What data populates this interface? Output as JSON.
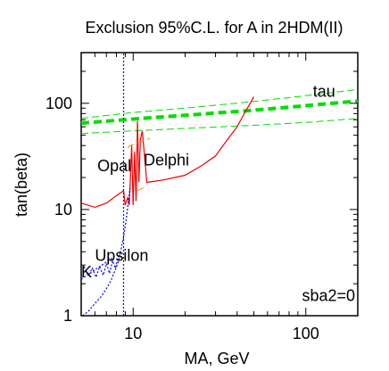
{
  "chart_data": {
    "type": "line",
    "title": "Exclusion 95%C.L. for A in 2HDM(II)",
    "xlabel": "MA,  GeV",
    "ylabel": "tan(beta)",
    "xscale": "log",
    "yscale": "log",
    "xlim": [
      5,
      200
    ],
    "ylim": [
      1,
      300
    ],
    "x_ticks": [
      {
        "value": 10,
        "label": "10"
      },
      {
        "value": 100,
        "label": "100"
      }
    ],
    "y_ticks": [
      {
        "value": 1,
        "label": "1"
      },
      {
        "value": 10,
        "label": "10"
      },
      {
        "value": 100,
        "label": "100"
      }
    ],
    "grid": false,
    "legend": "none",
    "annotations": [
      {
        "text": "tau",
        "x": 110,
        "y": 115
      },
      {
        "text": "Opal",
        "x": 6.2,
        "y": 23
      },
      {
        "text": "Delphi",
        "x": 11.5,
        "y": 26
      },
      {
        "text": "Upsilon",
        "x": 6.0,
        "y": 3.3
      },
      {
        "text": "K",
        "x": 5.0,
        "y": 2.3
      },
      {
        "text": "sba2=0",
        "x": 95,
        "y": 1.38
      }
    ],
    "series": [
      {
        "id": "tau-central",
        "color": "#00dd00",
        "style": "thick-dashed",
        "x": [
          5,
          10,
          20,
          50,
          100,
          200
        ],
        "y": [
          65,
          71,
          77,
          86,
          95,
          105
        ]
      },
      {
        "id": "tau-upper",
        "color": "#00dd00",
        "style": "thin-dashed",
        "x": [
          5,
          10,
          20,
          50,
          100,
          200
        ],
        "y": [
          72,
          82,
          90,
          104,
          118,
          135
        ]
      },
      {
        "id": "tau-lower",
        "color": "#00dd00",
        "style": "thin-dashed",
        "x": [
          5,
          10,
          20,
          50,
          100,
          200
        ],
        "y": [
          52,
          55,
          58,
          62,
          66,
          72
        ]
      },
      {
        "id": "delphi",
        "color": "#ee0000",
        "style": "solid",
        "x": [
          5,
          6,
          7,
          8,
          8.8,
          9,
          9.3,
          9.5,
          9.8,
          10,
          10.2,
          10.4,
          10.6,
          10.8,
          11,
          11.3,
          12,
          15,
          20,
          25,
          30,
          35,
          40,
          45,
          50
        ],
        "y": [
          11.5,
          10.5,
          11.5,
          13.5,
          15,
          11,
          13,
          11,
          40,
          11,
          35,
          12,
          68,
          18,
          45,
          55,
          18,
          19,
          21,
          26,
          32,
          45,
          60,
          85,
          115
        ]
      },
      {
        "id": "opal",
        "color": "#ff8800",
        "style": "thin-dashed",
        "x": [
          9.3,
          9.6,
          10,
          10.3,
          10.7,
          11.2,
          11.8,
          12.5
        ],
        "y": [
          38,
          40,
          41,
          42,
          43,
          44,
          45,
          47
        ]
      },
      {
        "id": "opal-lower",
        "color": "#ff8800",
        "style": "thin-dashed",
        "x": [
          10.5,
          11,
          11.5,
          12
        ],
        "y": [
          15,
          15.5,
          16,
          16.5
        ]
      },
      {
        "id": "vertical-limit",
        "color": "#0000ee",
        "style": "dotted",
        "x": [
          8.8,
          8.8
        ],
        "y": [
          1,
          300
        ]
      },
      {
        "id": "upsilon-outer",
        "color": "#0000ee",
        "style": "dotted",
        "x": [
          5.1,
          5.5,
          6,
          6.5,
          7,
          7.4,
          7.8,
          8.2,
          8.5,
          8.8,
          9.0,
          9.2,
          9.4,
          9.6
        ],
        "y": [
          1.0,
          1.1,
          1.3,
          1.5,
          1.8,
          2.1,
          2.6,
          3.2,
          4.2,
          5.5,
          7,
          9,
          12,
          16
        ]
      },
      {
        "id": "upsilon-inner",
        "color": "#0000ee",
        "style": "dotted",
        "x": [
          5.2,
          5.5,
          5.8,
          6.1,
          6.4,
          6.7,
          7.0,
          7.3,
          7.6,
          7.9,
          8.2,
          8.5
        ],
        "y": [
          2.9,
          2.4,
          2.8,
          2.3,
          2.9,
          2.4,
          3.1,
          2.5,
          3.3,
          2.8,
          3.6,
          4.0
        ]
      },
      {
        "id": "k-curve",
        "color": "#0000ee",
        "style": "dotted",
        "x": [
          5.0,
          5.3,
          5.6,
          6.0,
          6.4,
          6.8,
          7.2,
          7.6
        ],
        "y": [
          2.2,
          2.35,
          2.5,
          2.7,
          2.9,
          3.1,
          3.3,
          3.5
        ]
      }
    ]
  }
}
